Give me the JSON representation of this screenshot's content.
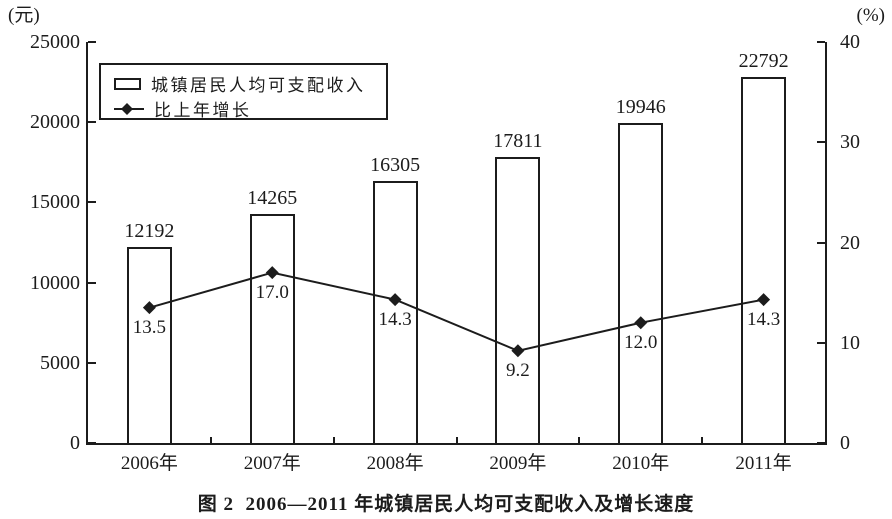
{
  "figure": {
    "caption": "图 2  2006—2011 年城镇居民人均可支配收入及增长速度"
  },
  "chart_data": {
    "type": "bar",
    "title": "图 2  2006—2011 年城镇居民人均可支配收入及增长速度",
    "categories": [
      "2006年",
      "2007年",
      "2008年",
      "2009年",
      "2010年",
      "2011年"
    ],
    "series": [
      {
        "name": "城镇居民人均可支配收入",
        "type": "bar",
        "axis": "left",
        "values": [
          12192,
          14265,
          16305,
          17811,
          19946,
          22792
        ],
        "labels": [
          "12192",
          "14265",
          "16305",
          "17811",
          "19946",
          "22792"
        ]
      },
      {
        "name": "比上年增长",
        "type": "line",
        "axis": "right",
        "marker": "diamond",
        "values": [
          13.5,
          17.0,
          14.3,
          9.2,
          12.0,
          14.3
        ],
        "labels": [
          "13.5",
          "17.0",
          "14.3",
          "9.2",
          "12.0",
          "14.3"
        ]
      }
    ],
    "left_axis": {
      "unit": "(元)",
      "min": 0,
      "max": 25000,
      "ticks": [
        0,
        5000,
        10000,
        15000,
        20000,
        25000
      ]
    },
    "right_axis": {
      "unit": "(%)",
      "min": 0,
      "max": 40,
      "ticks": [
        0,
        10,
        20,
        30,
        40
      ]
    },
    "legend": {
      "position": "top-left",
      "items": [
        "城镇居民人均可支配收入",
        "比上年增长"
      ]
    },
    "grid": false,
    "colors": {
      "ink": "#1c1c1c",
      "background": "#ffffff",
      "bar_fill": "#ffffff"
    }
  }
}
